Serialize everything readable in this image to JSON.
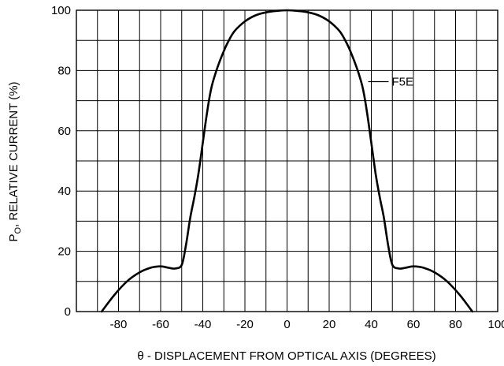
{
  "chart_data": {
    "type": "line",
    "xlabel": "θ - DISPLACEMENT FROM OPTICAL AXIS (DEGREES)",
    "ylabel_main": "P",
    "ylabel_sub": "O",
    "ylabel_rest": ", RELATIVE CURRENT (%)",
    "xlim": [
      -100,
      100
    ],
    "ylim": [
      0,
      100
    ],
    "x_ticks": [
      -80,
      -60,
      -40,
      -20,
      0,
      20,
      40,
      60,
      80,
      100
    ],
    "y_ticks": [
      0,
      20,
      40,
      60,
      80,
      100
    ],
    "grid": true,
    "series": [
      {
        "name": "F5E",
        "x": [
          -88,
          -82,
          -76,
          -70,
          -65,
          -60,
          -56,
          -53,
          -50,
          -48,
          -46,
          -44,
          -42,
          -40,
          -38,
          -36,
          -34,
          -32,
          -30,
          -28,
          -25,
          -20,
          -15,
          -10,
          -5,
          0,
          5,
          10,
          15,
          20,
          25,
          28,
          30,
          32,
          34,
          36,
          38,
          40,
          42,
          44,
          46,
          48,
          50,
          53,
          56,
          60,
          65,
          70,
          76,
          82,
          88
        ],
        "y": [
          0,
          5.5,
          10,
          13,
          14.5,
          15,
          14.5,
          14.3,
          15.5,
          22,
          31,
          38,
          46,
          56,
          66,
          74,
          79,
          83,
          86.5,
          89.5,
          93,
          96.3,
          98.3,
          99.3,
          99.8,
          100,
          99.8,
          99.3,
          98.3,
          96.3,
          93,
          89.5,
          86.5,
          83,
          79,
          74,
          66,
          56,
          46,
          38,
          31,
          22,
          15.5,
          14.3,
          14.5,
          15,
          14.5,
          13,
          10,
          5.5,
          0
        ]
      }
    ],
    "annotation": {
      "text": "F5E",
      "x": 37,
      "y": 75
    }
  }
}
